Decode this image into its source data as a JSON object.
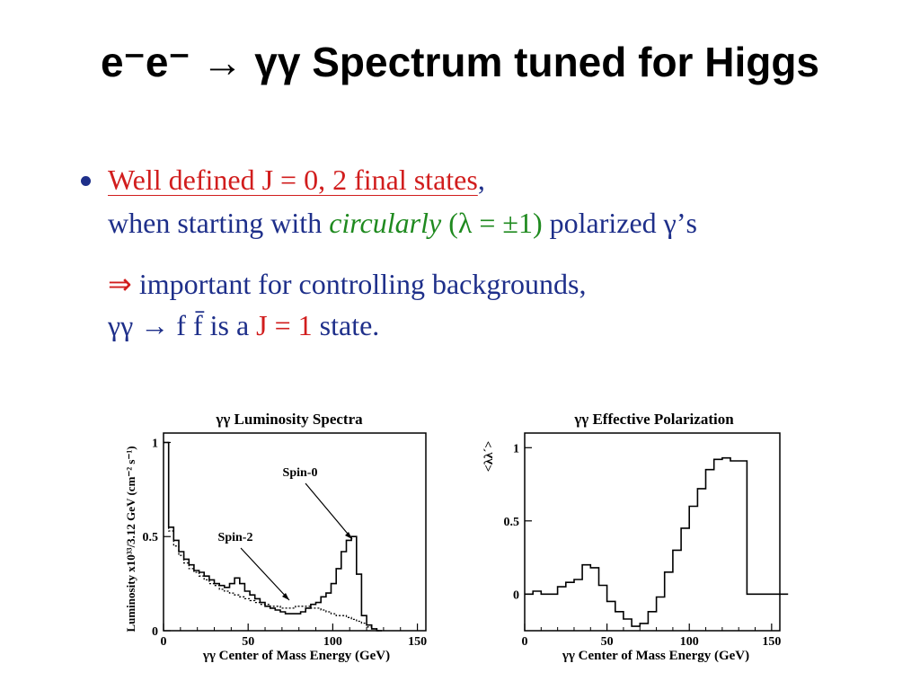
{
  "slide": {
    "title": "e⁻e⁻ → γγ Spectrum tuned for Higgs"
  },
  "bullet": {
    "l1_red": "Well defined J = 0, 2 final states",
    "l1_comma": ",",
    "l2_a": "when starting with ",
    "l2_green_it": "circularly",
    "l2_green": " (λ = ±1)",
    "l2_b": " polarized γ’s",
    "l3_red": "⇒",
    "l3_b": " important for controlling backgrounds,",
    "l4_a": "γγ → f f̄ is a ",
    "l4_red": "J = 1",
    "l4_b": " state."
  },
  "colors": {
    "title": "#000000",
    "text_blue": "#1e2f8a",
    "text_red": "#d11d1d",
    "text_green": "#1f8a1f"
  },
  "chart_data": [
    {
      "type": "line",
      "title": "γγ Luminosity Spectra",
      "xlabel": "γγ Center of Mass Energy (GeV)",
      "ylabel": "Luminosity x10³³/3.12 GeV (cm⁻² s⁻¹)",
      "xlim": [
        0,
        155
      ],
      "ylim": [
        0,
        1.05
      ],
      "xticks": [
        "0",
        "50",
        "100",
        "150"
      ],
      "yticks": [
        "0",
        "0.5",
        "1"
      ],
      "annotations": [
        "Spin-0",
        "Spin-2"
      ],
      "series": [
        {
          "name": "Spin-0",
          "style": "solid",
          "x": [
            0,
            3,
            6,
            9,
            12,
            15,
            18,
            21,
            24,
            27,
            30,
            33,
            36,
            39,
            42,
            45,
            48,
            51,
            54,
            57,
            60,
            63,
            66,
            69,
            72,
            75,
            78,
            81,
            84,
            87,
            90,
            93,
            96,
            99,
            102,
            105,
            108,
            111,
            114,
            117,
            120,
            123,
            126
          ],
          "values": [
            1.0,
            0.55,
            0.48,
            0.42,
            0.38,
            0.35,
            0.32,
            0.31,
            0.29,
            0.27,
            0.25,
            0.24,
            0.23,
            0.25,
            0.28,
            0.25,
            0.21,
            0.19,
            0.17,
            0.15,
            0.13,
            0.12,
            0.11,
            0.1,
            0.09,
            0.09,
            0.09,
            0.1,
            0.12,
            0.14,
            0.15,
            0.18,
            0.2,
            0.25,
            0.33,
            0.42,
            0.48,
            0.5,
            0.3,
            0.08,
            0.03,
            0.01,
            0.0
          ]
        },
        {
          "name": "Spin-2",
          "style": "dotted",
          "x": [
            0,
            3,
            6,
            9,
            12,
            15,
            18,
            21,
            24,
            27,
            30,
            33,
            36,
            39,
            42,
            45,
            48,
            51,
            54,
            57,
            60,
            63,
            66,
            69,
            72,
            75,
            78,
            81,
            84,
            87,
            90,
            93,
            96,
            99,
            102,
            105,
            108,
            111,
            114,
            117,
            120,
            123,
            126
          ],
          "values": [
            1.0,
            0.53,
            0.45,
            0.4,
            0.36,
            0.33,
            0.31,
            0.29,
            0.27,
            0.25,
            0.24,
            0.22,
            0.21,
            0.2,
            0.19,
            0.18,
            0.17,
            0.16,
            0.15,
            0.14,
            0.14,
            0.13,
            0.13,
            0.12,
            0.12,
            0.12,
            0.13,
            0.13,
            0.13,
            0.12,
            0.12,
            0.11,
            0.1,
            0.09,
            0.08,
            0.08,
            0.07,
            0.06,
            0.05,
            0.04,
            0.02,
            0.01,
            0.0
          ]
        }
      ]
    },
    {
      "type": "line",
      "title": "γγ Effective Polarization",
      "xlabel": "γγ Center of Mass Energy (GeV)",
      "ylabel": "<λλ´>",
      "xlim": [
        0,
        155
      ],
      "ylim": [
        -0.25,
        1.1
      ],
      "xticks": [
        "0",
        "50",
        "100",
        "150"
      ],
      "yticks": [
        "0",
        "0.5",
        "1"
      ],
      "series": [
        {
          "style": "solid",
          "x": [
            0,
            5,
            10,
            15,
            20,
            25,
            30,
            35,
            40,
            45,
            50,
            55,
            60,
            65,
            70,
            75,
            80,
            85,
            90,
            95,
            100,
            105,
            110,
            115,
            120,
            125,
            130,
            135,
            140,
            145,
            150,
            155
          ],
          "values": [
            0.0,
            0.02,
            0.0,
            0.0,
            0.05,
            0.08,
            0.1,
            0.2,
            0.18,
            0.06,
            -0.05,
            -0.12,
            -0.17,
            -0.22,
            -0.2,
            -0.12,
            -0.02,
            0.15,
            0.3,
            0.45,
            0.6,
            0.72,
            0.85,
            0.92,
            0.93,
            0.91,
            0.91,
            0.0,
            0.0,
            0.0,
            0.0,
            0.0
          ]
        }
      ]
    }
  ]
}
